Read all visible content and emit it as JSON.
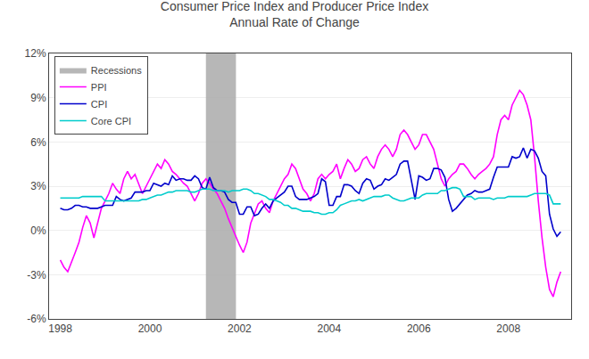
{
  "chart_data": {
    "type": "line",
    "title": "Consumer Price Index and Producer Price Index",
    "subtitle": "Annual Rate of Change",
    "x": [
      1998.0,
      1998.083,
      1998.167,
      1998.25,
      1998.333,
      1998.417,
      1998.5,
      1998.583,
      1998.667,
      1998.75,
      1998.833,
      1998.917,
      1999.0,
      1999.083,
      1999.167,
      1999.25,
      1999.333,
      1999.417,
      1999.5,
      1999.583,
      1999.667,
      1999.75,
      1999.833,
      1999.917,
      2000.0,
      2000.083,
      2000.167,
      2000.25,
      2000.333,
      2000.417,
      2000.5,
      2000.583,
      2000.667,
      2000.75,
      2000.833,
      2000.917,
      2001.0,
      2001.083,
      2001.167,
      2001.25,
      2001.333,
      2001.417,
      2001.5,
      2001.583,
      2001.667,
      2001.75,
      2001.833,
      2001.917,
      2002.0,
      2002.083,
      2002.167,
      2002.25,
      2002.333,
      2002.417,
      2002.5,
      2002.583,
      2002.667,
      2002.75,
      2002.833,
      2002.917,
      2003.0,
      2003.083,
      2003.167,
      2003.25,
      2003.333,
      2003.417,
      2003.5,
      2003.583,
      2003.667,
      2003.75,
      2003.833,
      2003.917,
      2004.0,
      2004.083,
      2004.167,
      2004.25,
      2004.333,
      2004.417,
      2004.5,
      2004.583,
      2004.667,
      2004.75,
      2004.833,
      2004.917,
      2005.0,
      2005.083,
      2005.167,
      2005.25,
      2005.333,
      2005.417,
      2005.5,
      2005.583,
      2005.667,
      2005.75,
      2005.833,
      2005.917,
      2006.0,
      2006.083,
      2006.167,
      2006.25,
      2006.333,
      2006.417,
      2006.5,
      2006.583,
      2006.667,
      2006.75,
      2006.833,
      2006.917,
      2007.0,
      2007.083,
      2007.167,
      2007.25,
      2007.333,
      2007.417,
      2007.5,
      2007.583,
      2007.667,
      2007.75,
      2007.833,
      2007.917,
      2008.0,
      2008.083,
      2008.167,
      2008.25,
      2008.333,
      2008.417,
      2008.5,
      2008.583,
      2008.667,
      2008.75,
      2008.833,
      2008.917,
      2009.0,
      2009.083,
      2009.167
    ],
    "series": [
      {
        "name": "PPI",
        "color": "#FF00FF",
        "values": [
          -2.0,
          -2.5,
          -2.8,
          -2.2,
          -1.5,
          -0.8,
          0.2,
          1.0,
          0.5,
          -0.5,
          0.5,
          1.5,
          2.0,
          2.5,
          3.2,
          2.8,
          2.5,
          3.5,
          4.0,
          3.5,
          3.8,
          3.2,
          2.5,
          3.0,
          3.5,
          4.0,
          4.5,
          4.2,
          4.8,
          4.5,
          4.0,
          3.8,
          3.5,
          3.2,
          3.0,
          2.5,
          2.0,
          2.5,
          3.2,
          3.5,
          3.2,
          2.8,
          2.5,
          2.0,
          1.5,
          0.8,
          0.2,
          -0.5,
          -1.0,
          -1.5,
          -0.8,
          0.5,
          1.2,
          1.8,
          2.0,
          1.5,
          1.2,
          2.0,
          2.5,
          3.0,
          3.5,
          3.8,
          4.5,
          4.2,
          3.5,
          2.8,
          2.5,
          2.0,
          2.5,
          3.5,
          3.8,
          3.5,
          3.8,
          4.0,
          4.5,
          3.5,
          4.2,
          4.8,
          4.5,
          4.0,
          4.2,
          4.8,
          5.0,
          4.5,
          4.2,
          5.0,
          5.5,
          5.8,
          5.5,
          5.0,
          5.5,
          6.5,
          6.8,
          6.5,
          6.0,
          5.5,
          5.8,
          6.5,
          6.5,
          6.0,
          5.5,
          4.5,
          3.5,
          3.0,
          3.5,
          3.8,
          4.0,
          4.5,
          4.5,
          4.2,
          3.8,
          3.5,
          3.8,
          4.0,
          4.2,
          4.5,
          5.0,
          6.5,
          7.5,
          7.8,
          7.5,
          8.5,
          9.0,
          9.5,
          9.2,
          8.5,
          7.5,
          5.0,
          2.0,
          -0.5,
          -2.5,
          -4.0,
          -4.5,
          -3.5,
          -2.8
        ]
      },
      {
        "name": "CPI",
        "color": "#0000CC",
        "values": [
          1.5,
          1.4,
          1.4,
          1.5,
          1.7,
          1.7,
          1.6,
          1.6,
          1.5,
          1.5,
          1.5,
          1.6,
          1.7,
          1.7,
          1.7,
          2.3,
          2.1,
          2.0,
          2.1,
          2.2,
          2.6,
          2.6,
          2.6,
          2.7,
          2.7,
          3.2,
          3.1,
          3.0,
          3.2,
          3.1,
          3.7,
          3.4,
          3.5,
          3.5,
          3.4,
          3.4,
          3.7,
          3.5,
          2.9,
          2.8,
          3.6,
          2.9,
          2.7,
          2.7,
          2.6,
          2.1,
          1.9,
          1.9,
          1.1,
          1.1,
          1.6,
          1.6,
          1.0,
          1.1,
          1.5,
          1.8,
          1.5,
          2.0,
          2.2,
          2.4,
          2.6,
          3.0,
          3.0,
          2.3,
          2.1,
          2.1,
          2.1,
          2.2,
          2.3,
          2.5,
          3.5,
          3.3,
          1.7,
          1.7,
          2.3,
          2.3,
          3.1,
          3.1,
          3.0,
          2.7,
          2.5,
          3.2,
          3.5,
          3.4,
          2.8,
          3.0,
          3.1,
          3.5,
          3.4,
          3.6,
          3.8,
          4.5,
          4.7,
          4.7,
          3.5,
          2.1,
          3.7,
          3.6,
          3.4,
          3.5,
          4.2,
          4.2,
          4.1,
          3.6,
          2.1,
          1.3,
          1.5,
          1.8,
          2.1,
          2.4,
          2.5,
          2.7,
          2.6,
          2.6,
          2.7,
          2.8,
          3.6,
          4.3,
          4.3,
          4.3,
          4.3,
          5.0,
          4.9,
          5.0,
          5.6,
          4.9,
          5.5,
          5.4,
          4.9,
          4.0,
          3.7,
          1.1,
          0.1,
          -0.4,
          -0.1
        ]
      },
      {
        "name": "Core CPI",
        "color": "#00CCCC",
        "values": [
          2.2,
          2.2,
          2.2,
          2.2,
          2.2,
          2.2,
          2.3,
          2.3,
          2.3,
          2.3,
          2.3,
          2.3,
          2.0,
          2.0,
          2.0,
          2.0,
          2.0,
          2.0,
          2.0,
          2.0,
          2.0,
          2.0,
          2.1,
          2.1,
          2.2,
          2.3,
          2.4,
          2.4,
          2.5,
          2.6,
          2.6,
          2.7,
          2.7,
          2.7,
          2.7,
          2.6,
          2.6,
          2.7,
          2.8,
          2.8,
          2.8,
          2.7,
          2.7,
          2.7,
          2.7,
          2.6,
          2.7,
          2.7,
          2.7,
          2.8,
          2.8,
          2.7,
          2.5,
          2.5,
          2.4,
          2.3,
          2.1,
          2.1,
          2.0,
          1.9,
          1.7,
          1.7,
          1.5,
          1.5,
          1.4,
          1.3,
          1.3,
          1.3,
          1.2,
          1.2,
          1.1,
          1.1,
          1.2,
          1.2,
          1.4,
          1.7,
          1.8,
          1.9,
          2.0,
          2.0,
          2.1,
          2.0,
          2.1,
          2.2,
          2.3,
          2.3,
          2.3,
          2.4,
          2.4,
          2.2,
          2.1,
          2.0,
          2.0,
          2.1,
          2.2,
          2.2,
          2.2,
          2.4,
          2.5,
          2.5,
          2.5,
          2.5,
          2.7,
          2.7,
          2.8,
          2.9,
          2.9,
          2.8,
          2.3,
          2.3,
          2.3,
          2.1,
          2.2,
          2.2,
          2.2,
          2.2,
          2.1,
          2.2,
          2.2,
          2.2,
          2.3,
          2.3,
          2.3,
          2.3,
          2.3,
          2.3,
          2.4,
          2.5,
          2.5,
          2.5,
          2.5,
          2.4,
          1.8,
          1.8,
          1.8
        ]
      }
    ],
    "shaded_regions": [
      {
        "name": "Recessions",
        "start": 2001.25,
        "end": 2001.92,
        "color": "#AAAAAA"
      }
    ],
    "xlim": [
      1997.75,
      2009.4
    ],
    "xticks": [
      1998,
      2000,
      2002,
      2004,
      2006,
      2008
    ],
    "ylim": [
      -6,
      12
    ],
    "yticks": [
      {
        "value": -6,
        "label": "-6%"
      },
      {
        "value": -3,
        "label": "-3%"
      },
      {
        "value": 0,
        "label": "0%"
      },
      {
        "value": 3,
        "label": "3%"
      },
      {
        "value": 6,
        "label": "6%"
      },
      {
        "value": 9,
        "label": "9%"
      },
      {
        "value": 12,
        "label": "12%"
      }
    ],
    "grid": "y",
    "legend": "upper left"
  }
}
